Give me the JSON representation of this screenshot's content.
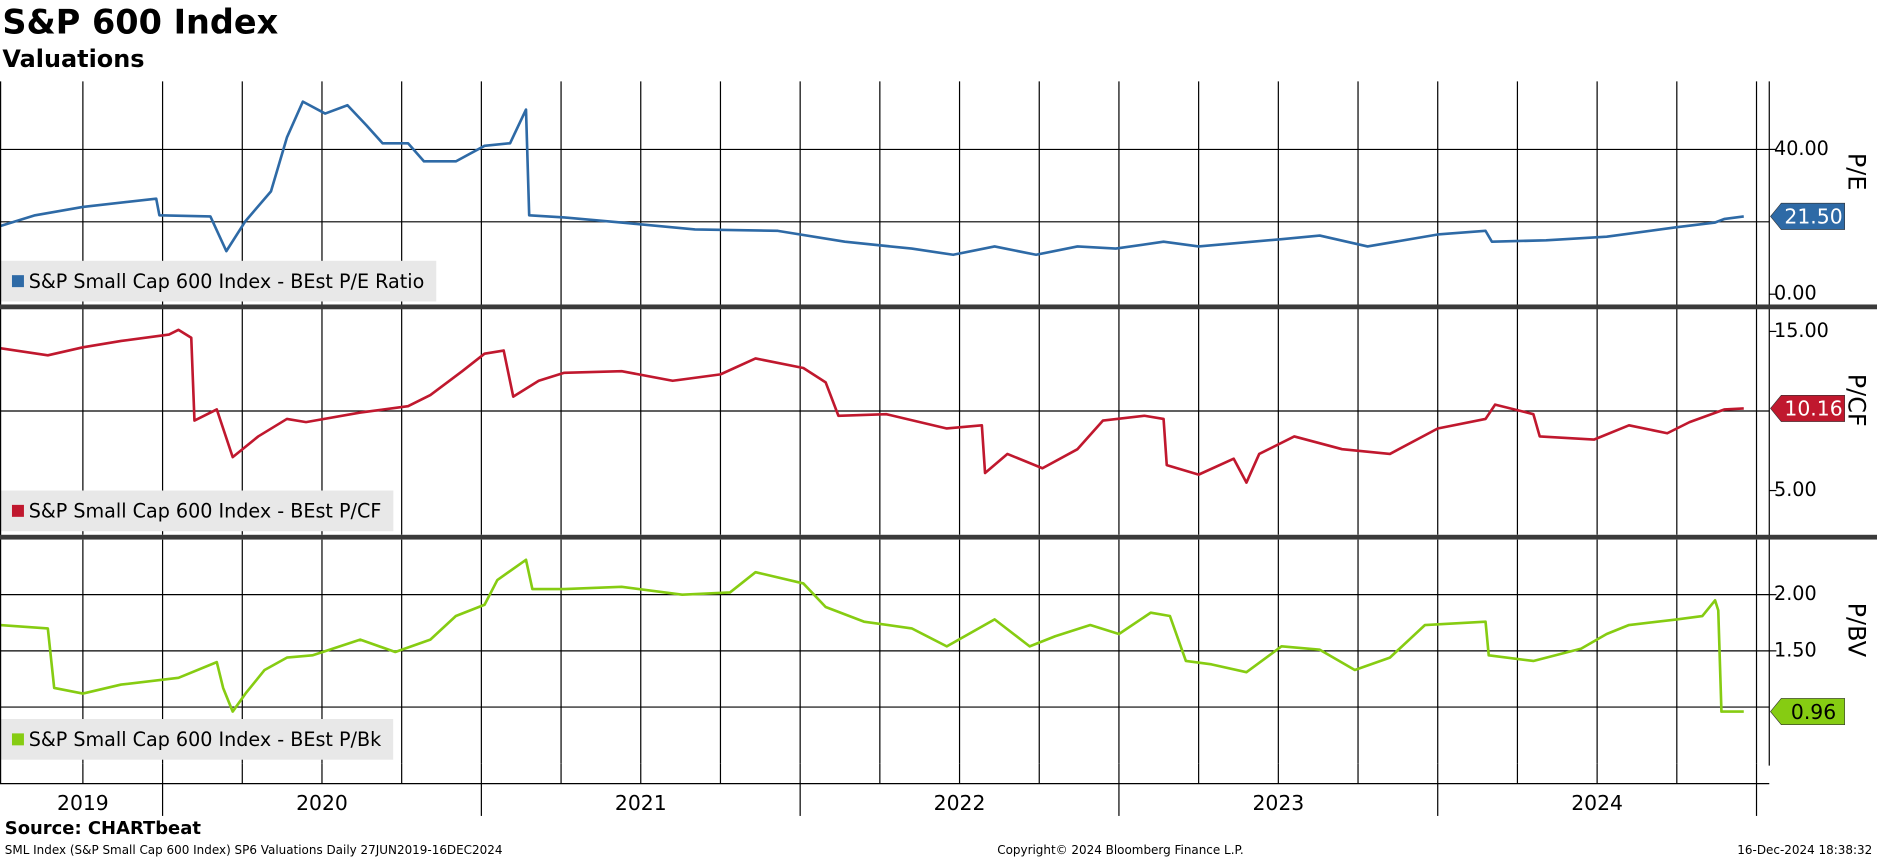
{
  "header": {
    "title": "S&P 600 Index",
    "subtitle": "Valuations"
  },
  "footer": {
    "source": "Source: CHARTbeat",
    "description": "SML Index (S&P Small Cap 600 Index) SP6 Valuations  Daily 27JUN2019-16DEC2024",
    "copyright": "Copyright© 2024 Bloomberg Finance L.P.",
    "timestamp": "16-Dec-2024 18:38:32"
  },
  "x_axis": {
    "xlim": [
      2019.49,
      2025.04
    ],
    "grid": [
      2019.75,
      2020,
      2020.25,
      2020.5,
      2020.75,
      2021,
      2021.25,
      2021.5,
      2021.75,
      2022,
      2022.25,
      2022.5,
      2022.75,
      2023,
      2023.25,
      2023.5,
      2023.75,
      2024,
      2024.25,
      2024.5,
      2024.75,
      2025
    ],
    "year_ticks": [
      2020,
      2021,
      2022,
      2023,
      2024,
      2025
    ],
    "year_labels": [
      {
        "value": 2019.75,
        "label": "2019"
      },
      {
        "value": 2020.5,
        "label": "2020"
      },
      {
        "value": 2021.5,
        "label": "2021"
      },
      {
        "value": 2022.5,
        "label": "2022"
      },
      {
        "value": 2023.5,
        "label": "2023"
      },
      {
        "value": 2024.5,
        "label": "2024"
      }
    ]
  },
  "chart_data": [
    {
      "type": "line",
      "ylabel": "P/E",
      "ylim": [
        -3,
        58.8
      ],
      "yticks": [
        {
          "value": 0,
          "label": "0.00"
        },
        {
          "value": 40,
          "label": "40.00"
        }
      ],
      "ygrid": [
        20,
        40
      ],
      "x": [
        2019.49,
        2019.6,
        2019.75,
        2019.98,
        2019.99,
        2020.15,
        2020.2,
        2020.26,
        2020.34,
        2020.39,
        2020.44,
        2020.51,
        2020.58,
        2020.64,
        2020.69,
        2020.77,
        2020.82,
        2020.92,
        2021.01,
        2021.09,
        2021.14,
        2021.15,
        2021.26,
        2021.44,
        2021.67,
        2021.93,
        2022.14,
        2022.35,
        2022.48,
        2022.61,
        2022.74,
        2022.87,
        2022.99,
        2023.14,
        2023.25,
        2023.51,
        2023.63,
        2023.78,
        2024.0,
        2024.15,
        2024.17,
        2024.34,
        2024.53,
        2024.75,
        2024.87,
        2024.9,
        2024.96
      ],
      "series": [
        {
          "name": "S&P Small Cap 600 Index - BEst P/E Ratio",
          "color": "#2e6aa6",
          "values": [
            18.8,
            21.8,
            24.1,
            26.4,
            21.8,
            21.5,
            11.9,
            20.2,
            28.4,
            43.3,
            53.2,
            49.9,
            52.2,
            46.6,
            41.7,
            41.7,
            36.7,
            36.7,
            41,
            41.7,
            51,
            21.8,
            21.2,
            19.8,
            17.9,
            17.5,
            14.5,
            12.6,
            10.9,
            13.2,
            10.9,
            13.2,
            12.6,
            14.5,
            13.2,
            15.2,
            16.2,
            13.2,
            16.5,
            17.5,
            14.5,
            14.9,
            15.9,
            18.5,
            19.8,
            20.8,
            21.5
          ],
          "last_value_label": "21.50",
          "last_label_text_color": "#ffffff"
        }
      ]
    },
    {
      "type": "line",
      "ylabel": "P/CF",
      "ylim": [
        2.22,
        16.43
      ],
      "yticks": [
        {
          "value": 5,
          "label": "5.00"
        },
        {
          "value": 15,
          "label": "15.00"
        }
      ],
      "ygrid": [
        10
      ],
      "x": [
        2019.49,
        2019.64,
        2019.75,
        2019.87,
        2020.02,
        2020.05,
        2020.09,
        2020.1,
        2020.17,
        2020.22,
        2020.3,
        2020.39,
        2020.45,
        2020.62,
        2020.77,
        2020.84,
        2020.94,
        2021.01,
        2021.07,
        2021.1,
        2021.18,
        2021.26,
        2021.44,
        2021.6,
        2021.75,
        2021.86,
        2022.01,
        2022.08,
        2022.12,
        2022.27,
        2022.46,
        2022.57,
        2022.58,
        2022.65,
        2022.76,
        2022.87,
        2022.95,
        2023.08,
        2023.14,
        2023.15,
        2023.25,
        2023.36,
        2023.4,
        2023.44,
        2023.55,
        2023.7,
        2023.85,
        2024.0,
        2024.15,
        2024.18,
        2024.3,
        2024.32,
        2024.49,
        2024.6,
        2024.72,
        2024.79,
        2024.9,
        2024.96
      ],
      "series": [
        {
          "name": "S&P Small Cap 600 Index - BEst P/CF",
          "color": "#c0182e",
          "values": [
            13.95,
            13.5,
            14.0,
            14.4,
            14.8,
            15.1,
            14.6,
            9.4,
            10.1,
            7.1,
            8.4,
            9.5,
            9.3,
            9.9,
            10.3,
            11.0,
            12.5,
            13.6,
            13.8,
            10.9,
            11.9,
            12.4,
            12.5,
            11.9,
            12.3,
            13.3,
            12.7,
            11.8,
            9.7,
            9.8,
            8.9,
            9.1,
            6.1,
            7.3,
            6.4,
            7.6,
            9.4,
            9.7,
            9.5,
            6.6,
            6.0,
            7.0,
            5.5,
            7.3,
            8.4,
            7.6,
            7.3,
            8.9,
            9.5,
            10.4,
            9.8,
            8.4,
            8.2,
            9.1,
            8.6,
            9.3,
            10.1,
            10.16
          ],
          "last_value_label": "10.16",
          "last_label_text_color": "#ffffff"
        }
      ]
    },
    {
      "type": "line",
      "ylabel": "P/BV",
      "ylim": [
        0.5,
        2.49
      ],
      "yticks": [
        {
          "value": 1.5,
          "label": "1.50"
        },
        {
          "value": 2,
          "label": "2.00"
        }
      ],
      "ygrid": [
        1,
        1.5,
        2
      ],
      "x": [
        2019.49,
        2019.64,
        2019.66,
        2019.75,
        2019.87,
        2020.05,
        2020.17,
        2020.19,
        2020.22,
        2020.26,
        2020.32,
        2020.39,
        2020.47,
        2020.62,
        2020.73,
        2020.84,
        2020.92,
        2021.01,
        2021.05,
        2021.14,
        2021.16,
        2021.26,
        2021.44,
        2021.63,
        2021.78,
        2021.86,
        2022.01,
        2022.08,
        2022.2,
        2022.35,
        2022.46,
        2022.61,
        2022.72,
        2022.8,
        2022.91,
        2023.0,
        2023.1,
        2023.16,
        2023.21,
        2023.29,
        2023.4,
        2023.51,
        2023.63,
        2023.74,
        2023.85,
        2023.96,
        2024.15,
        2024.16,
        2024.3,
        2024.45,
        2024.53,
        2024.6,
        2024.75,
        2024.83,
        2024.87,
        2024.88,
        2024.89,
        2024.96
      ],
      "series": [
        {
          "name": "S&P Small Cap 600 Index - BEst P/Bk",
          "color": "#86cc12",
          "values": [
            1.73,
            1.7,
            1.17,
            1.12,
            1.2,
            1.26,
            1.4,
            1.17,
            0.96,
            1.12,
            1.33,
            1.44,
            1.46,
            1.6,
            1.49,
            1.6,
            1.81,
            1.91,
            2.13,
            2.31,
            2.05,
            2.05,
            2.07,
            2.0,
            2.02,
            2.2,
            2.1,
            1.89,
            1.76,
            1.7,
            1.54,
            1.78,
            1.54,
            1.63,
            1.73,
            1.65,
            1.84,
            1.81,
            1.41,
            1.38,
            1.31,
            1.54,
            1.51,
            1.33,
            1.44,
            1.73,
            1.76,
            1.46,
            1.41,
            1.52,
            1.65,
            1.73,
            1.78,
            1.81,
            1.95,
            1.86,
            0.96,
            0.96
          ],
          "last_value_label": "0.96",
          "last_label_text_color": "#000000"
        }
      ]
    }
  ]
}
